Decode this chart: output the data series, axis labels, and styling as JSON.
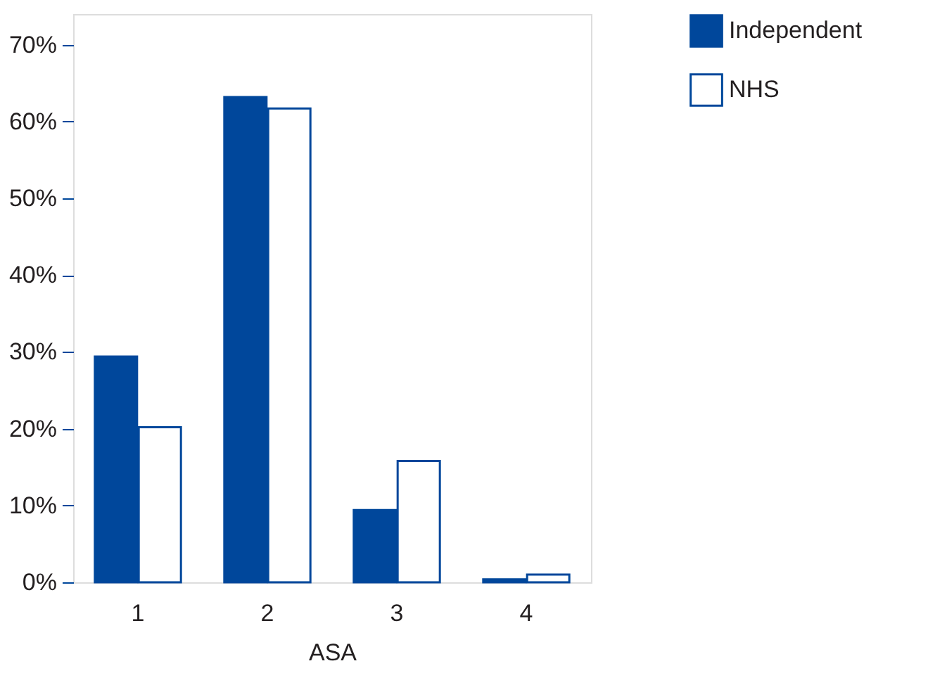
{
  "chart_data": {
    "type": "bar",
    "xlabel": "ASA",
    "categories": [
      "1",
      "2",
      "3",
      "4"
    ],
    "series": [
      {
        "name": "Independent",
        "color": "#00479b",
        "values": [
          29.4,
          63.2,
          9.4,
          0.4
        ]
      },
      {
        "name": "NHS",
        "color": "#ffffff",
        "values": [
          20.2,
          61.7,
          15.8,
          1.0
        ]
      }
    ],
    "ylim": [
      0,
      74
    ],
    "yticks": [
      {
        "value": 0,
        "label": "0%"
      },
      {
        "value": 10,
        "label": "10%"
      },
      {
        "value": 20,
        "label": "20%"
      },
      {
        "value": 30,
        "label": "30%"
      },
      {
        "value": 40,
        "label": "40%"
      },
      {
        "value": 50,
        "label": "50%"
      },
      {
        "value": 60,
        "label": "60%"
      },
      {
        "value": 70,
        "label": "70%"
      }
    ],
    "grid": false,
    "legend": "top right"
  }
}
